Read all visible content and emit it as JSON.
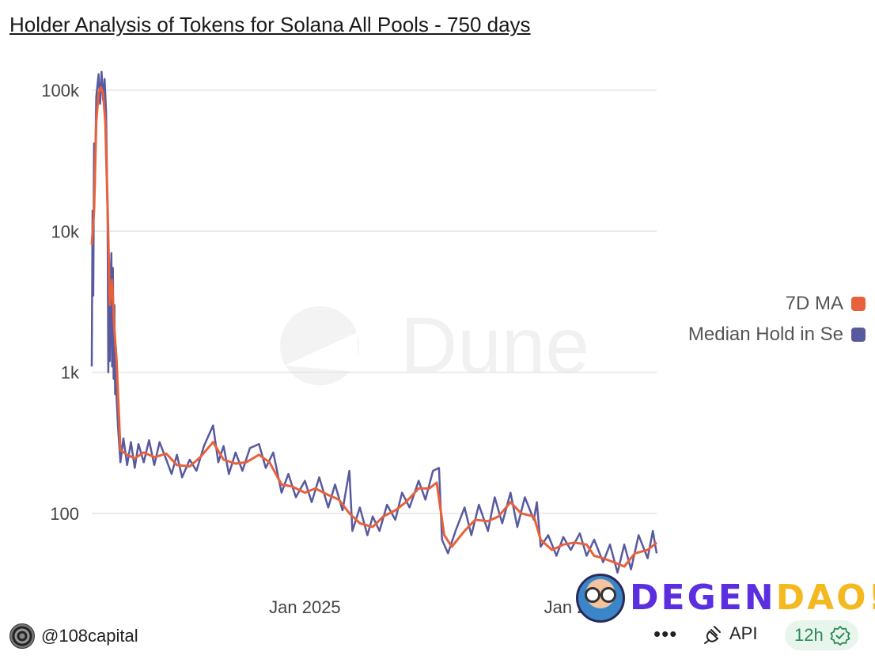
{
  "title": "Holder Analysis of Tokens for Solana All Pools - 750 days",
  "legend": [
    {
      "label": "7D MA",
      "color": "#e8613a"
    },
    {
      "label": "Median Hold in Se",
      "color": "#585aa0"
    }
  ],
  "watermark": "Dune",
  "footer": {
    "author": "@108capital",
    "more_label": "•••",
    "api_label": "API",
    "refresh_badge": "12h"
  },
  "overlay_brand": {
    "part1": "DEGEN",
    "part2": "DAO!"
  },
  "chart_data": {
    "type": "line",
    "title": "Holder Analysis of Tokens for Solana All Pools - 750 days",
    "xlabel": "",
    "ylabel": "",
    "y_scale": "log",
    "ylim": [
      30,
      140000
    ],
    "y_ticks": [
      100,
      1000,
      10000,
      100000
    ],
    "y_tick_labels": [
      "100",
      "1k",
      "10k",
      "100k"
    ],
    "x_range": [
      "2024-03-24",
      "2026-04-13"
    ],
    "x_tick_labels": [
      {
        "date": "2025-01-01",
        "label": "Jan 2025"
      },
      {
        "date": "2026-01-01",
        "label": "Jan 2026"
      }
    ],
    "grid": true,
    "legend_position": "right",
    "series": [
      {
        "name": "7D MA",
        "color": "#e8613a",
        "points": [
          [
            "2024-03-24",
            8000
          ],
          [
            "2024-03-27",
            14000
          ],
          [
            "2024-03-30",
            60000
          ],
          [
            "2024-04-02",
            95000
          ],
          [
            "2024-04-05",
            105000
          ],
          [
            "2024-04-08",
            95000
          ],
          [
            "2024-04-11",
            60000
          ],
          [
            "2024-04-14",
            15000
          ],
          [
            "2024-04-17",
            3000
          ],
          [
            "2024-04-20",
            4500
          ],
          [
            "2024-04-23",
            2000
          ],
          [
            "2024-04-26",
            1200
          ],
          [
            "2024-04-29",
            500
          ],
          [
            "2024-05-01",
            280
          ],
          [
            "2024-05-10",
            260
          ],
          [
            "2024-05-20",
            245
          ],
          [
            "2024-06-01",
            270
          ],
          [
            "2024-06-15",
            250
          ],
          [
            "2024-07-01",
            265
          ],
          [
            "2024-07-15",
            220
          ],
          [
            "2024-08-01",
            215
          ],
          [
            "2024-08-15",
            250
          ],
          [
            "2024-09-01",
            320
          ],
          [
            "2024-09-15",
            240
          ],
          [
            "2024-10-01",
            225
          ],
          [
            "2024-10-15",
            230
          ],
          [
            "2024-11-01",
            260
          ],
          [
            "2024-11-15",
            230
          ],
          [
            "2024-12-01",
            160
          ],
          [
            "2024-12-15",
            155
          ],
          [
            "2025-01-01",
            140
          ],
          [
            "2025-01-15",
            150
          ],
          [
            "2025-02-01",
            135
          ],
          [
            "2025-02-15",
            125
          ],
          [
            "2025-03-01",
            100
          ],
          [
            "2025-03-15",
            85
          ],
          [
            "2025-04-01",
            80
          ],
          [
            "2025-04-15",
            95
          ],
          [
            "2025-05-01",
            105
          ],
          [
            "2025-05-15",
            120
          ],
          [
            "2025-06-01",
            150
          ],
          [
            "2025-06-15",
            150
          ],
          [
            "2025-06-25",
            165
          ],
          [
            "2025-07-05",
            70
          ],
          [
            "2025-07-15",
            58
          ],
          [
            "2025-08-01",
            75
          ],
          [
            "2025-08-15",
            90
          ],
          [
            "2025-09-01",
            88
          ],
          [
            "2025-09-15",
            95
          ],
          [
            "2025-10-01",
            120
          ],
          [
            "2025-10-15",
            100
          ],
          [
            "2025-11-01",
            95
          ],
          [
            "2025-11-10",
            65
          ],
          [
            "2025-11-25",
            55
          ],
          [
            "2025-12-10",
            60
          ],
          [
            "2025-12-25",
            62
          ],
          [
            "2026-01-10",
            60
          ],
          [
            "2026-01-20",
            50
          ],
          [
            "2026-02-01",
            48
          ],
          [
            "2026-02-15",
            45
          ],
          [
            "2026-03-01",
            42
          ],
          [
            "2026-03-15",
            52
          ],
          [
            "2026-04-01",
            55
          ],
          [
            "2026-04-13",
            62
          ]
        ]
      },
      {
        "name": "Median Hold in Se",
        "color": "#585aa0",
        "points": [
          [
            "2024-03-24",
            1100
          ],
          [
            "2024-03-25",
            14000
          ],
          [
            "2024-03-26",
            3500
          ],
          [
            "2024-03-27",
            42000
          ],
          [
            "2024-03-28",
            20000
          ],
          [
            "2024-03-30",
            90000
          ],
          [
            "2024-04-02",
            130000
          ],
          [
            "2024-04-04",
            80000
          ],
          [
            "2024-04-06",
            135000
          ],
          [
            "2024-04-08",
            85000
          ],
          [
            "2024-04-10",
            120000
          ],
          [
            "2024-04-12",
            70000
          ],
          [
            "2024-04-14",
            12000
          ],
          [
            "2024-04-15",
            1000
          ],
          [
            "2024-04-16",
            6000
          ],
          [
            "2024-04-17",
            1200
          ],
          [
            "2024-04-18",
            4000
          ],
          [
            "2024-04-19",
            7000
          ],
          [
            "2024-04-20",
            1100
          ],
          [
            "2024-04-21",
            5500
          ],
          [
            "2024-04-22",
            900
          ],
          [
            "2024-04-23",
            3000
          ],
          [
            "2024-04-24",
            700
          ],
          [
            "2024-04-25",
            1500
          ],
          [
            "2024-04-26",
            650
          ],
          [
            "2024-04-28",
            400
          ],
          [
            "2024-05-01",
            230
          ],
          [
            "2024-05-05",
            340
          ],
          [
            "2024-05-10",
            220
          ],
          [
            "2024-05-15",
            320
          ],
          [
            "2024-05-20",
            210
          ],
          [
            "2024-05-25",
            310
          ],
          [
            "2024-06-01",
            230
          ],
          [
            "2024-06-08",
            330
          ],
          [
            "2024-06-15",
            220
          ],
          [
            "2024-06-22",
            320
          ],
          [
            "2024-07-01",
            240
          ],
          [
            "2024-07-08",
            190
          ],
          [
            "2024-07-15",
            260
          ],
          [
            "2024-07-22",
            180
          ],
          [
            "2024-08-01",
            240
          ],
          [
            "2024-08-10",
            200
          ],
          [
            "2024-08-20",
            300
          ],
          [
            "2024-09-01",
            420
          ],
          [
            "2024-09-08",
            230
          ],
          [
            "2024-09-15",
            300
          ],
          [
            "2024-09-22",
            190
          ],
          [
            "2024-10-01",
            270
          ],
          [
            "2024-10-10",
            200
          ],
          [
            "2024-10-20",
            290
          ],
          [
            "2024-11-01",
            310
          ],
          [
            "2024-11-10",
            210
          ],
          [
            "2024-11-20",
            270
          ],
          [
            "2024-12-01",
            140
          ],
          [
            "2024-12-10",
            190
          ],
          [
            "2024-12-20",
            130
          ],
          [
            "2025-01-01",
            170
          ],
          [
            "2025-01-10",
            120
          ],
          [
            "2025-01-20",
            180
          ],
          [
            "2025-02-01",
            110
          ],
          [
            "2025-02-10",
            160
          ],
          [
            "2025-02-20",
            105
          ],
          [
            "2025-03-01",
            200
          ],
          [
            "2025-03-05",
            75
          ],
          [
            "2025-03-15",
            110
          ],
          [
            "2025-03-25",
            70
          ],
          [
            "2025-04-01",
            95
          ],
          [
            "2025-04-10",
            75
          ],
          [
            "2025-04-20",
            115
          ],
          [
            "2025-05-01",
            90
          ],
          [
            "2025-05-10",
            140
          ],
          [
            "2025-05-20",
            110
          ],
          [
            "2025-06-01",
            170
          ],
          [
            "2025-06-10",
            125
          ],
          [
            "2025-06-20",
            200
          ],
          [
            "2025-06-28",
            210
          ],
          [
            "2025-07-02",
            65
          ],
          [
            "2025-07-10",
            52
          ],
          [
            "2025-07-20",
            75
          ],
          [
            "2025-08-01",
            110
          ],
          [
            "2025-08-10",
            70
          ],
          [
            "2025-08-20",
            115
          ],
          [
            "2025-09-01",
            75
          ],
          [
            "2025-09-10",
            130
          ],
          [
            "2025-09-20",
            85
          ],
          [
            "2025-10-01",
            140
          ],
          [
            "2025-10-10",
            80
          ],
          [
            "2025-10-20",
            130
          ],
          [
            "2025-11-01",
            90
          ],
          [
            "2025-11-05",
            120
          ],
          [
            "2025-11-10",
            58
          ],
          [
            "2025-11-20",
            70
          ],
          [
            "2025-12-01",
            50
          ],
          [
            "2025-12-10",
            68
          ],
          [
            "2025-12-20",
            55
          ],
          [
            "2026-01-01",
            72
          ],
          [
            "2026-01-10",
            50
          ],
          [
            "2026-01-20",
            65
          ],
          [
            "2026-02-01",
            45
          ],
          [
            "2026-02-10",
            60
          ],
          [
            "2026-02-20",
            38
          ],
          [
            "2026-03-01",
            60
          ],
          [
            "2026-03-10",
            40
          ],
          [
            "2026-03-20",
            70
          ],
          [
            "2026-04-01",
            48
          ],
          [
            "2026-04-08",
            75
          ],
          [
            "2026-04-13",
            52
          ]
        ]
      }
    ]
  }
}
